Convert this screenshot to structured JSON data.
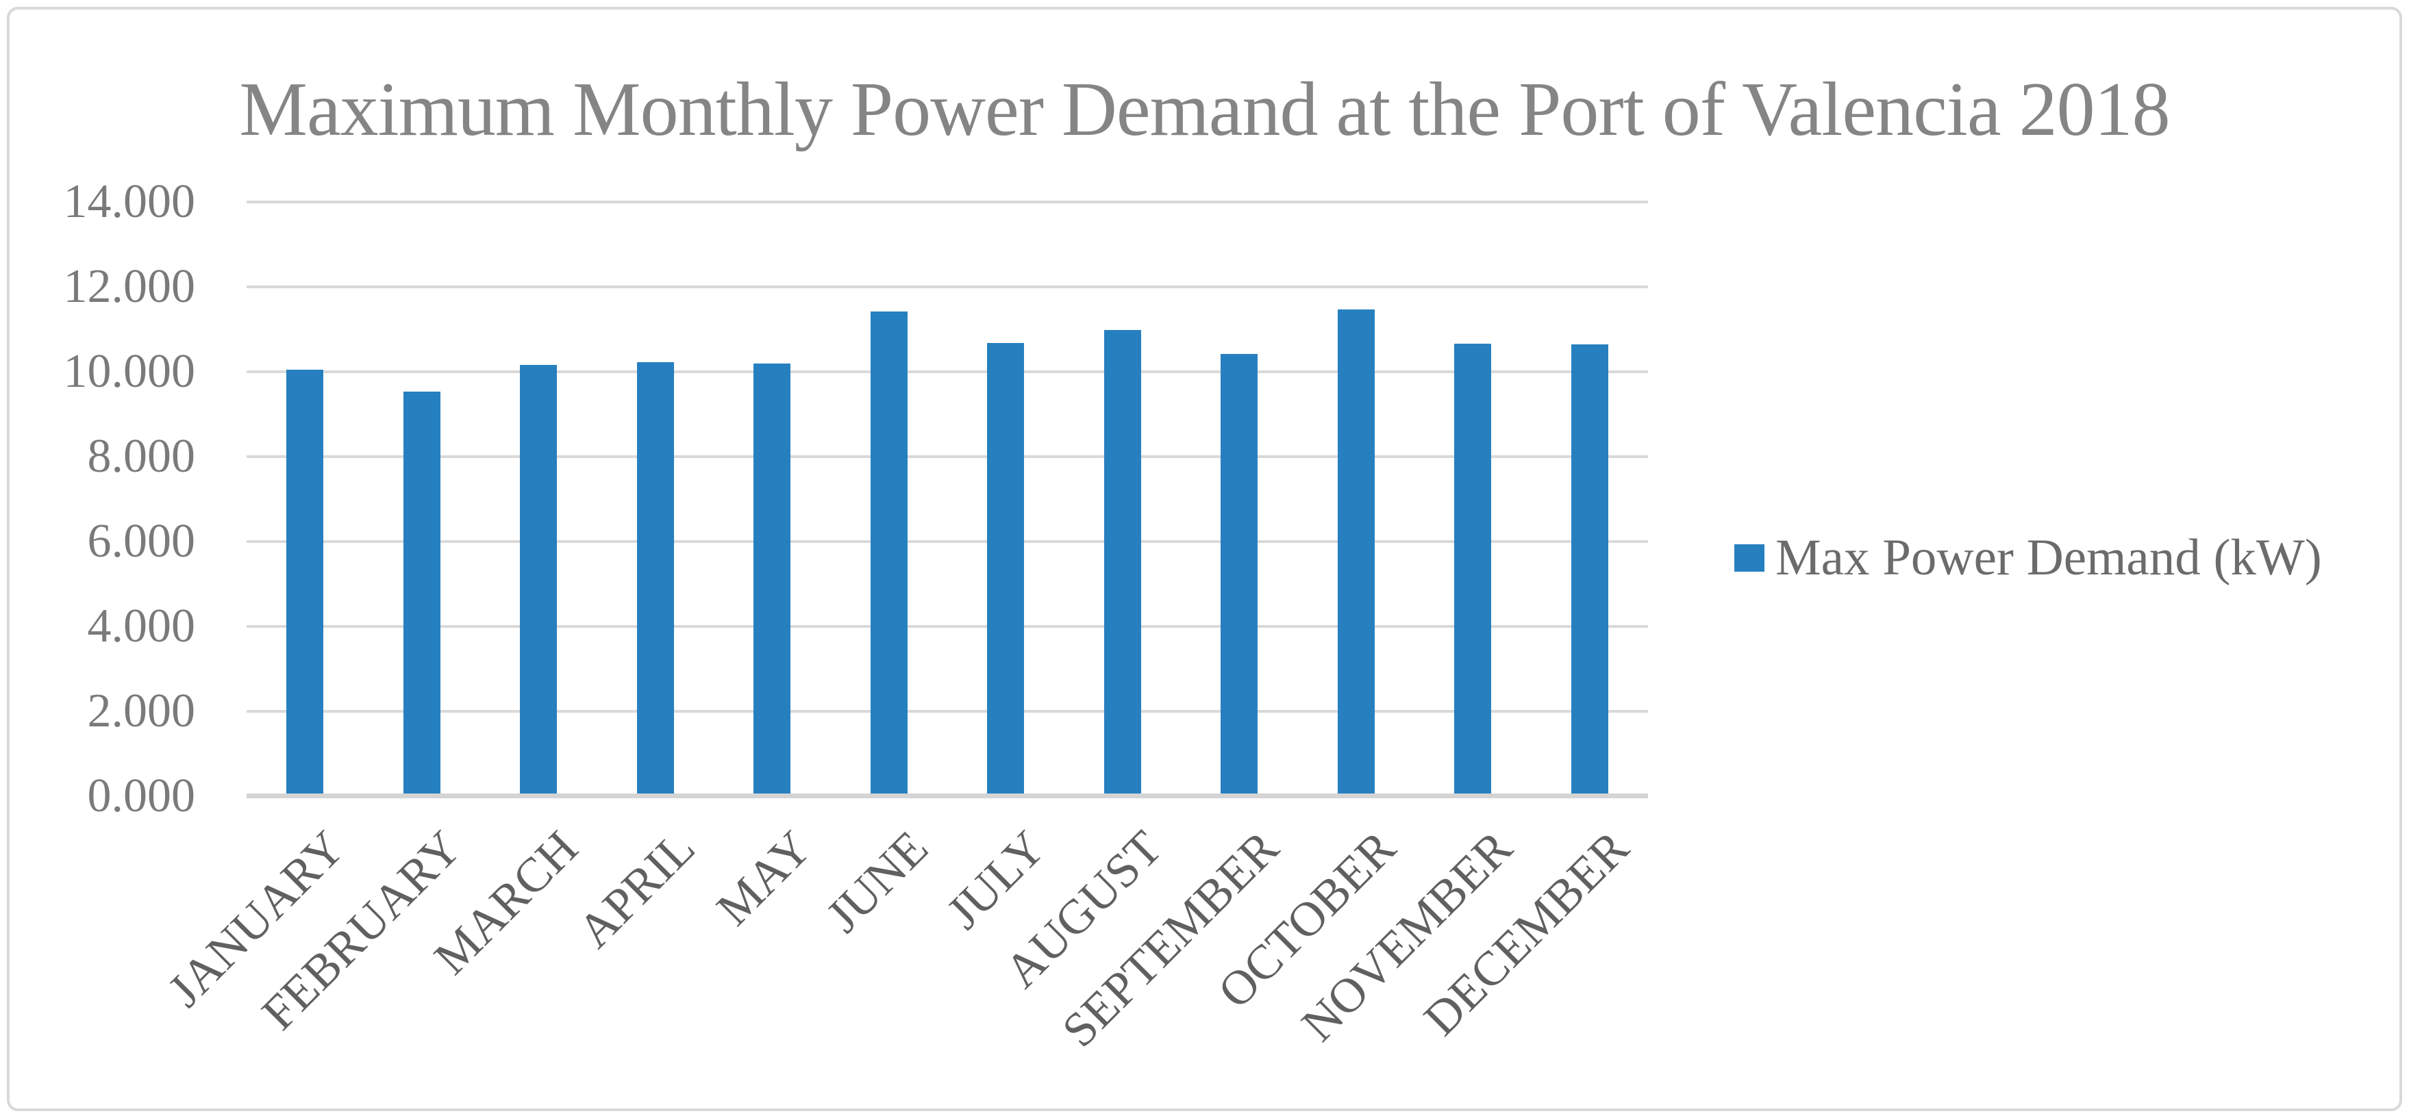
{
  "frame": {
    "border_color": "#D9D9D9"
  },
  "chart_data": {
    "type": "bar",
    "title": "Maximum Monthly Power Demand at the Port of Valencia 2018",
    "categories": [
      "JANUARY",
      "FEBRUARY",
      "MARCH",
      "APRIL",
      "MAY",
      "JUNE",
      "JULY",
      "AUGUST",
      "SEPTEMBER",
      "OCTOBER",
      "NOVEMBER",
      "DECEMBER"
    ],
    "series": [
      {
        "name": "Max Power Demand (kW)",
        "values": [
          10050,
          9530,
          10160,
          10220,
          10190,
          11420,
          10670,
          10980,
          10420,
          11460,
          10660,
          10650
        ]
      }
    ],
    "xlabel": "",
    "ylabel": "",
    "ylim": [
      0,
      14000
    ],
    "y_ticks": [
      0,
      2000,
      4000,
      6000,
      8000,
      10000,
      12000,
      14000
    ],
    "y_tick_labels": [
      "0.000",
      "2.000",
      "4.000",
      "6.000",
      "8.000",
      "10.000",
      "12.000",
      "14.000"
    ],
    "grid": true,
    "legend_position": "right",
    "colors": {
      "bar": "#2680C0",
      "gridline": "#D9D9D9",
      "axis_line": "#D4D4D4",
      "title_text": "#858585",
      "tick_text": "#7A7A7A",
      "category_text": "#606060",
      "legend_text": "#6B6B6B"
    }
  }
}
